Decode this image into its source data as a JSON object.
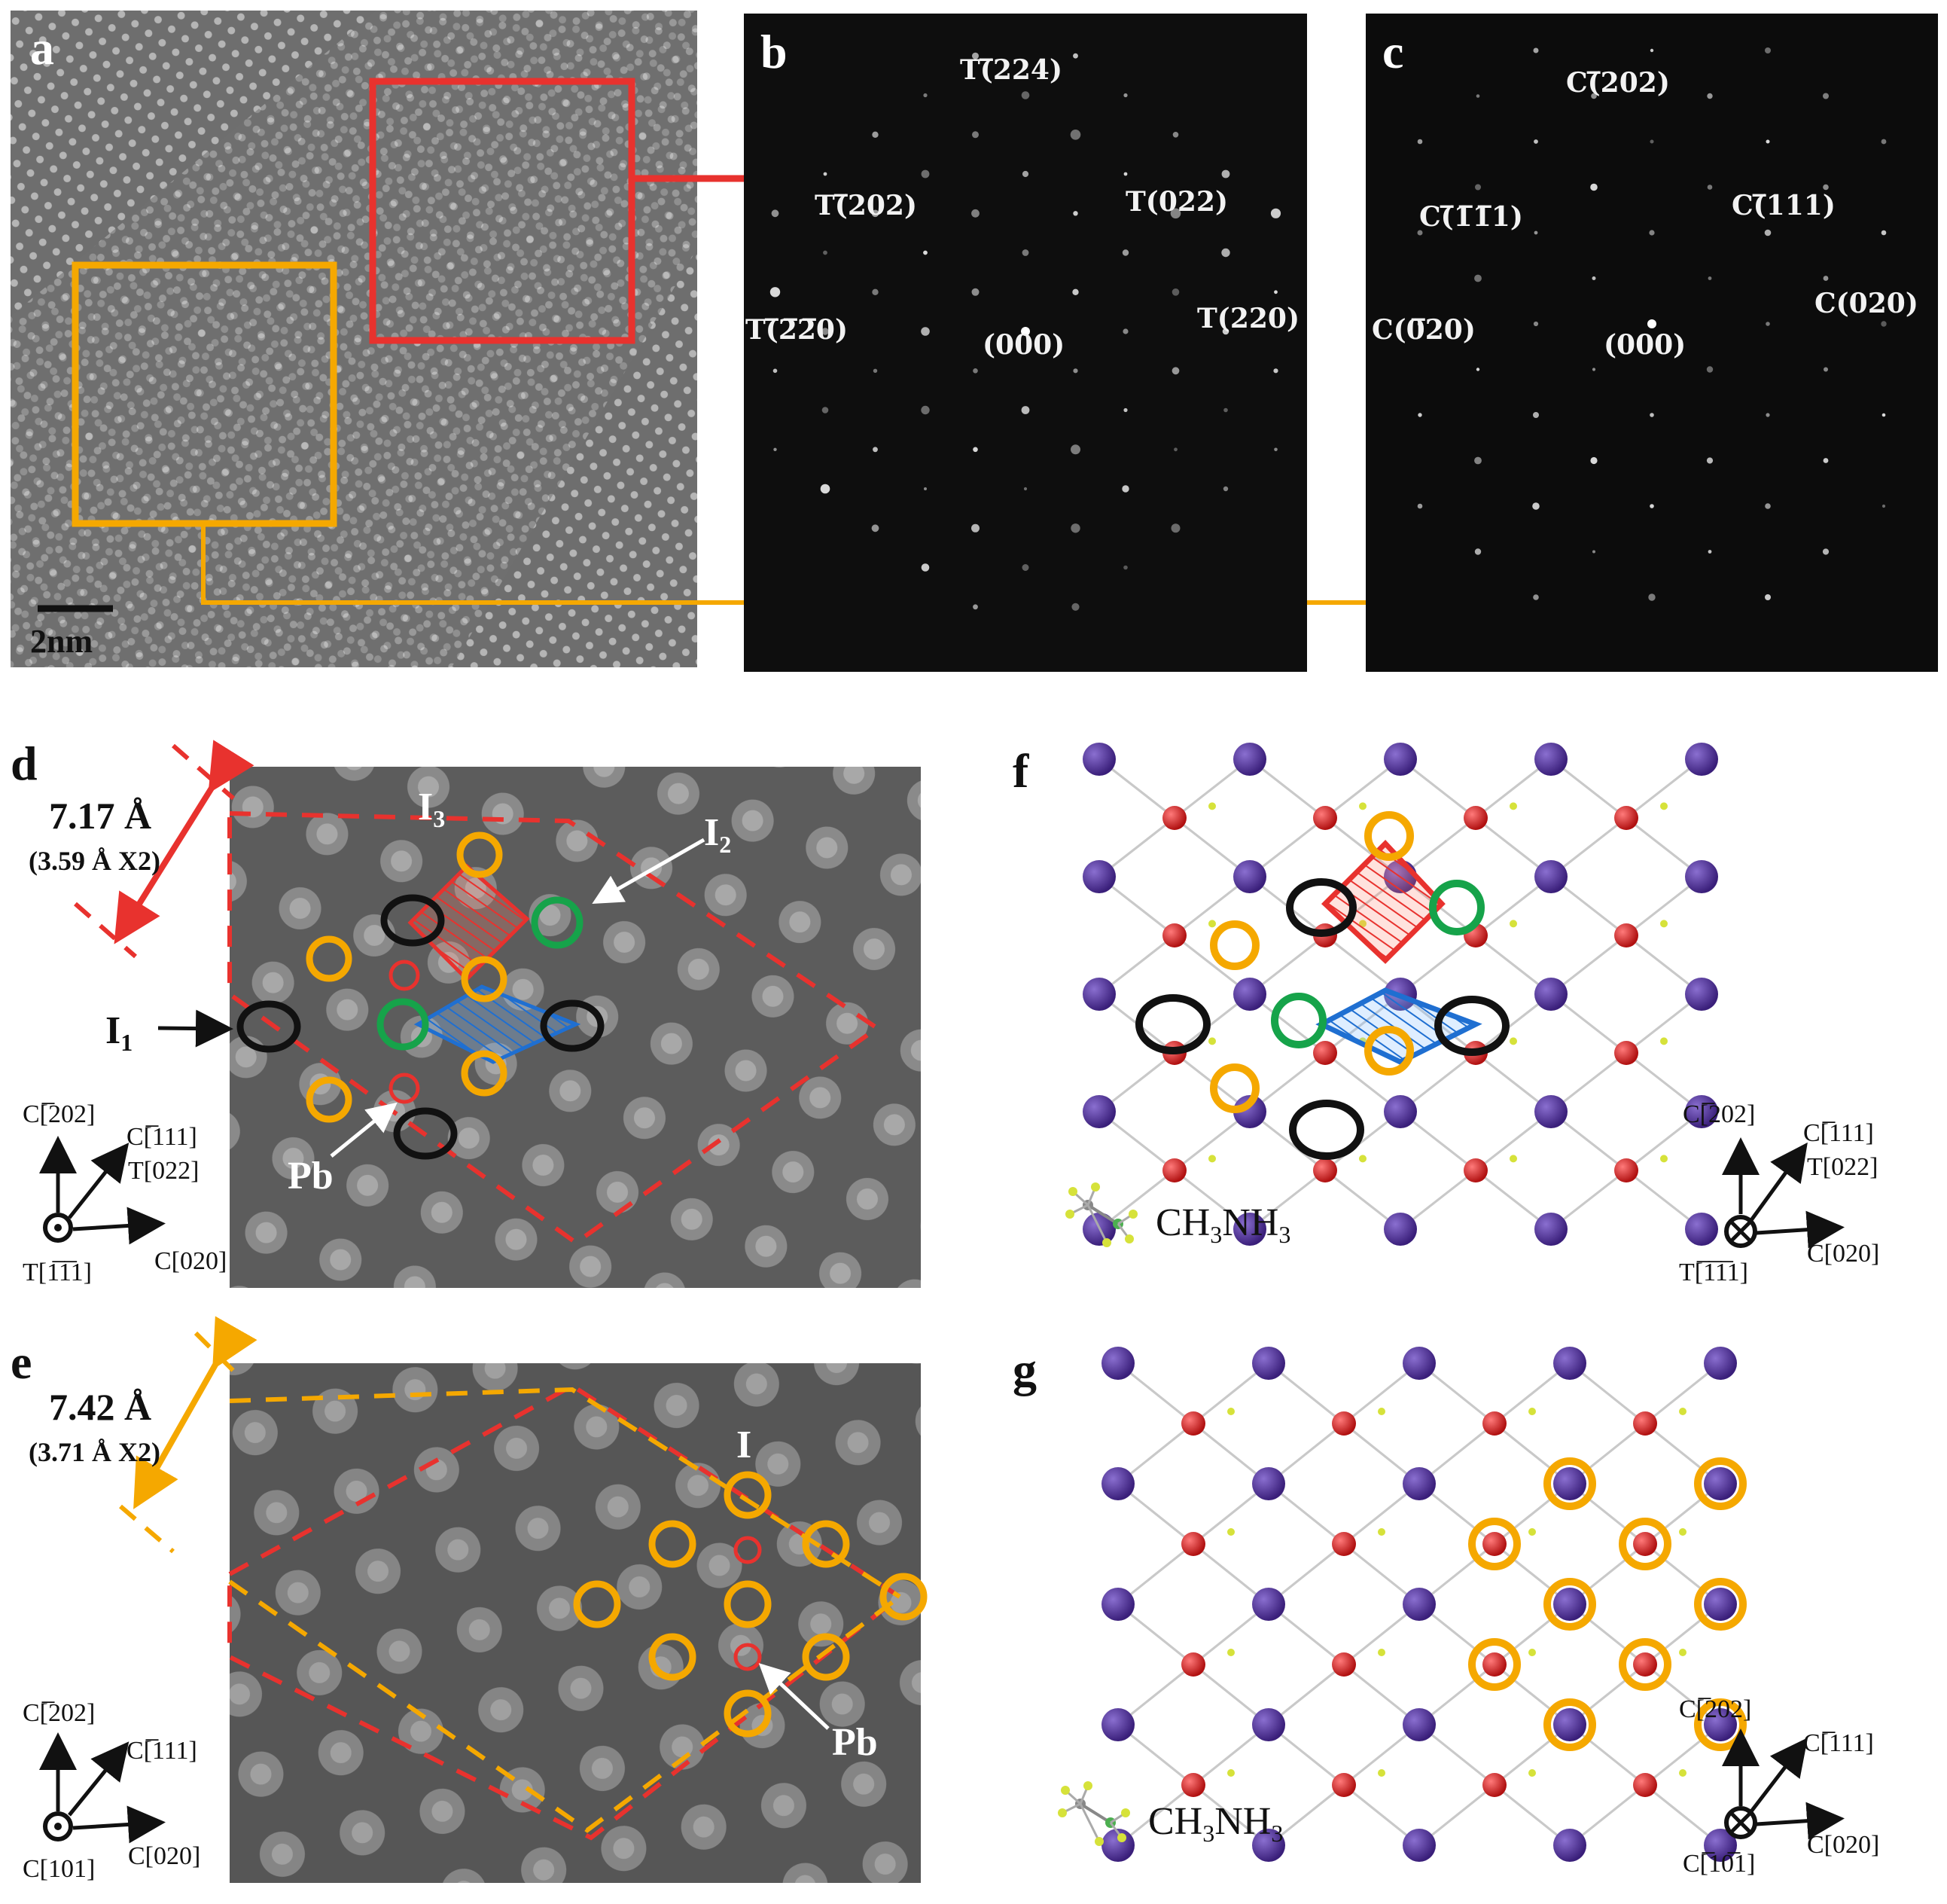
{
  "panels": {
    "a": {
      "label": "a",
      "scalebar": "2nm"
    },
    "b": {
      "label": "b",
      "spots": [
        "T(̅224)",
        "T(̅202)",
        "T(022)",
        "T(̅2̅2̅0)",
        "T(220)",
        "(000)"
      ]
    },
    "c": {
      "label": "c",
      "spots": [
        "C(̅202)",
        "C(̅1̅1̅1)",
        "C(̅111)",
        "C(0̅20)",
        "C(020)",
        "(000)"
      ]
    },
    "d": {
      "label": "d",
      "distance": "7.17 Å",
      "distance_detail": "(3.59 Å X2)",
      "labels": {
        "I1": "I",
        "I1_sub": "1",
        "I2": "I",
        "I2_sub": "2",
        "I3": "I",
        "I3_sub": "3",
        "Pb": "Pb"
      },
      "axes": {
        "up": "C[̅202]",
        "diag1": "C[̅111]",
        "diag2": "T[022]",
        "right": "C[020]",
        "out": "T[1̅1̅1]"
      }
    },
    "e": {
      "label": "e",
      "distance": "7.42 Å",
      "distance_detail": "(3.71 Å X2)",
      "labels": {
        "I": "I",
        "Pb": "Pb"
      },
      "axes": {
        "up": "C[̅202]",
        "diag1": "C[̅111]",
        "right": "C[020]",
        "out": "C[101]"
      }
    },
    "f": {
      "label": "f",
      "legend": "CH3NH3",
      "legend_main": "CH",
      "legend_sub1": "3",
      "legend_mid": "NH",
      "legend_sub2": "3",
      "axes": {
        "up": "C[̅202]",
        "diag1": "C[̅111]",
        "diag2": "T[022]",
        "right": "C[020]",
        "in": "T[̅1̅1̅1]"
      }
    },
    "g": {
      "label": "g",
      "legend_main": "CH",
      "legend_sub1": "3",
      "legend_mid": "NH",
      "legend_sub2": "3",
      "axes": {
        "up": "C[̅202]",
        "diag1": "C[̅111]",
        "right": "C[020]",
        "in": "C[̅10̅1]"
      }
    }
  },
  "colors": {
    "red": "#e8322e",
    "orange": "#f5a800",
    "green": "#16a34a",
    "blue": "#1f6fd1",
    "iodine": "#4b2d8f",
    "lead": "#d61f1f",
    "black_ring": "#111111"
  }
}
